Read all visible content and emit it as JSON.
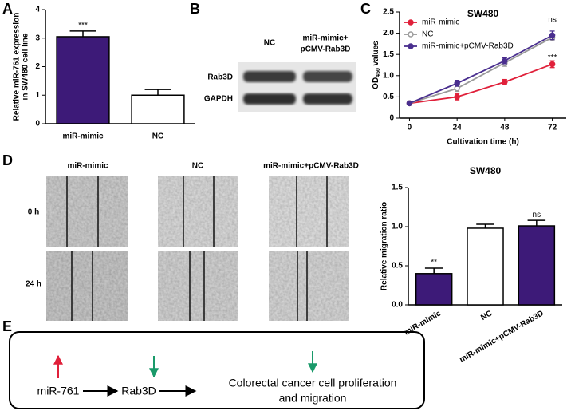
{
  "panel_labels": [
    "A",
    "B",
    "C",
    "D",
    "E"
  ],
  "chart_data": [
    {
      "type": "bar",
      "ylabel": [
        "Relative miR-761 expression",
        "in SW480 cell line"
      ],
      "categories": [
        "miR-mimic",
        "NC"
      ],
      "values": [
        3.05,
        1.0
      ],
      "errors": [
        0.2,
        0.2
      ],
      "colors": [
        "#3d1a78",
        "#ffffff"
      ],
      "value_annotations": [
        "***",
        null
      ],
      "ylim": [
        0,
        4
      ],
      "yticks": [
        0,
        1,
        2,
        3,
        4
      ]
    },
    {
      "type": "line",
      "title": "SW480",
      "xlabel": "Cultivation time (h)",
      "ylabel": [
        "OD",
        "450",
        " values"
      ],
      "x": [
        0,
        24,
        48,
        72
      ],
      "xlim": [
        -5,
        79
      ],
      "xticks": [
        0,
        24,
        48,
        72
      ],
      "ylim": [
        0,
        2.5
      ],
      "yticks": [
        0,
        0.5,
        {
          "value": 1.0,
          "label": "1.0"
        },
        1.5,
        {
          "value": 2.0,
          "label": "2.0"
        },
        2.5
      ],
      "series": [
        {
          "name": "miR-mimic",
          "color": "#e0203a",
          "values": [
            0.35,
            0.5,
            0.85,
            1.27
          ],
          "errors": [
            0.03,
            0.07,
            0.06,
            0.08
          ],
          "point_labels": [
            null,
            null,
            null,
            "***"
          ]
        },
        {
          "name": "NC",
          "color": "#9a9a9a",
          "values": [
            0.35,
            0.7,
            1.3,
            1.9
          ],
          "errors": [
            0.03,
            0.07,
            0.08,
            0.08
          ],
          "point_labels": [
            null,
            null,
            null,
            null
          ]
        },
        {
          "name": "miR-mimic+pCMV-Rab3D",
          "color": "#4a2f8f",
          "values": [
            0.35,
            0.82,
            1.35,
            1.95
          ],
          "errors": [
            0.03,
            0.07,
            0.07,
            0.1
          ],
          "point_labels": [
            null,
            null,
            null,
            "ns"
          ]
        }
      ]
    },
    {
      "type": "bar",
      "title": "SW480",
      "ylabel": [
        "Relative migration ratio"
      ],
      "categories": [
        "miR-mimic",
        "NC",
        "miR-mimic+pCMV-Rab3D"
      ],
      "values": [
        0.4,
        0.98,
        1.01
      ],
      "errors": [
        0.07,
        0.05,
        0.07
      ],
      "colors": [
        "#3d1a78",
        "#ffffff",
        "#3d1a78"
      ],
      "value_annotations": [
        "**",
        null,
        "ns"
      ],
      "xtick_rotation": -30,
      "ylim": [
        0,
        1.5
      ],
      "yticks": [
        {
          "value": 0,
          "label": "0.0"
        },
        0.5,
        {
          "value": 1.0,
          "label": "1.0"
        },
        1.5
      ]
    }
  ],
  "blot": {
    "lanes": [
      [
        "NC"
      ],
      [
        "miR-mimic+",
        "pCMV-Rab3D"
      ]
    ],
    "rows": [
      "Rab3D",
      "GAPDH"
    ]
  },
  "migration_images": {
    "columns": [
      "miR-mimic",
      "NC",
      "miR-mimic+pCMV-Rab3D"
    ],
    "rows": [
      "0 h",
      "24 h"
    ]
  },
  "diagram": {
    "nodes": [
      [
        "miR-761"
      ],
      [
        "Rab3D"
      ],
      [
        "Colorectal cancer cell proliferation",
        "and migration"
      ]
    ]
  }
}
